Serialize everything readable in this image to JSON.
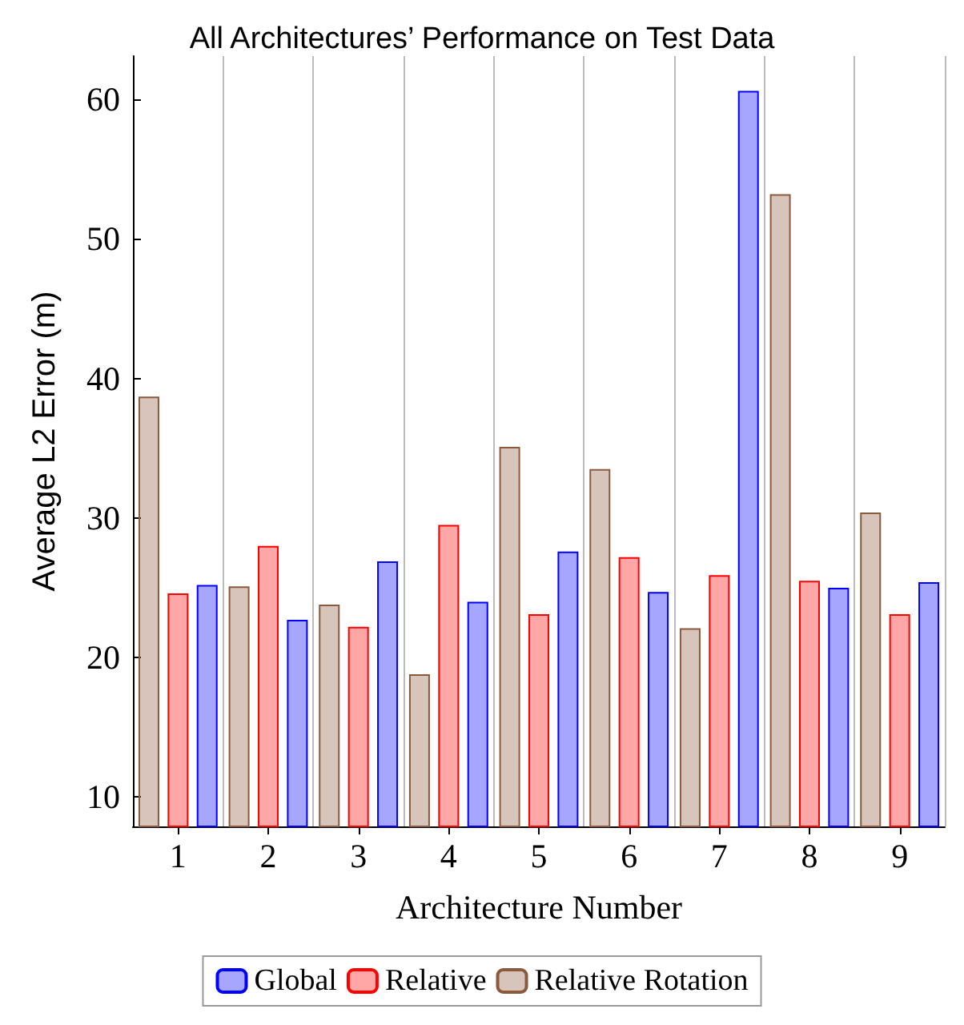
{
  "chart_data": {
    "type": "bar",
    "title": "All Architectures’ Performance on Test Data",
    "xlabel": "Architecture Number",
    "ylabel": "Average L2 Error (m)",
    "categories": [
      "1",
      "2",
      "3",
      "4",
      "5",
      "6",
      "7",
      "8",
      "9"
    ],
    "series": [
      {
        "name": "Global",
        "color": "#0000ff",
        "values": [
          25.2,
          22.7,
          26.9,
          24.0,
          27.6,
          24.7,
          60.6,
          25.0,
          25.4
        ]
      },
      {
        "name": "Relative",
        "color": "#ff0000",
        "values": [
          24.6,
          28.0,
          22.2,
          29.5,
          23.1,
          27.2,
          25.9,
          25.5,
          23.1
        ]
      },
      {
        "name": "Relative Rotation",
        "color": "#8b5a3c",
        "values": [
          38.7,
          25.1,
          23.8,
          18.8,
          35.1,
          33.5,
          22.1,
          53.2,
          30.4
        ]
      }
    ],
    "ylim": [
      7.9,
      63.1
    ],
    "yticks": [
      10,
      20,
      30,
      40,
      50,
      60
    ],
    "grid": "x",
    "legend": "bottom"
  }
}
